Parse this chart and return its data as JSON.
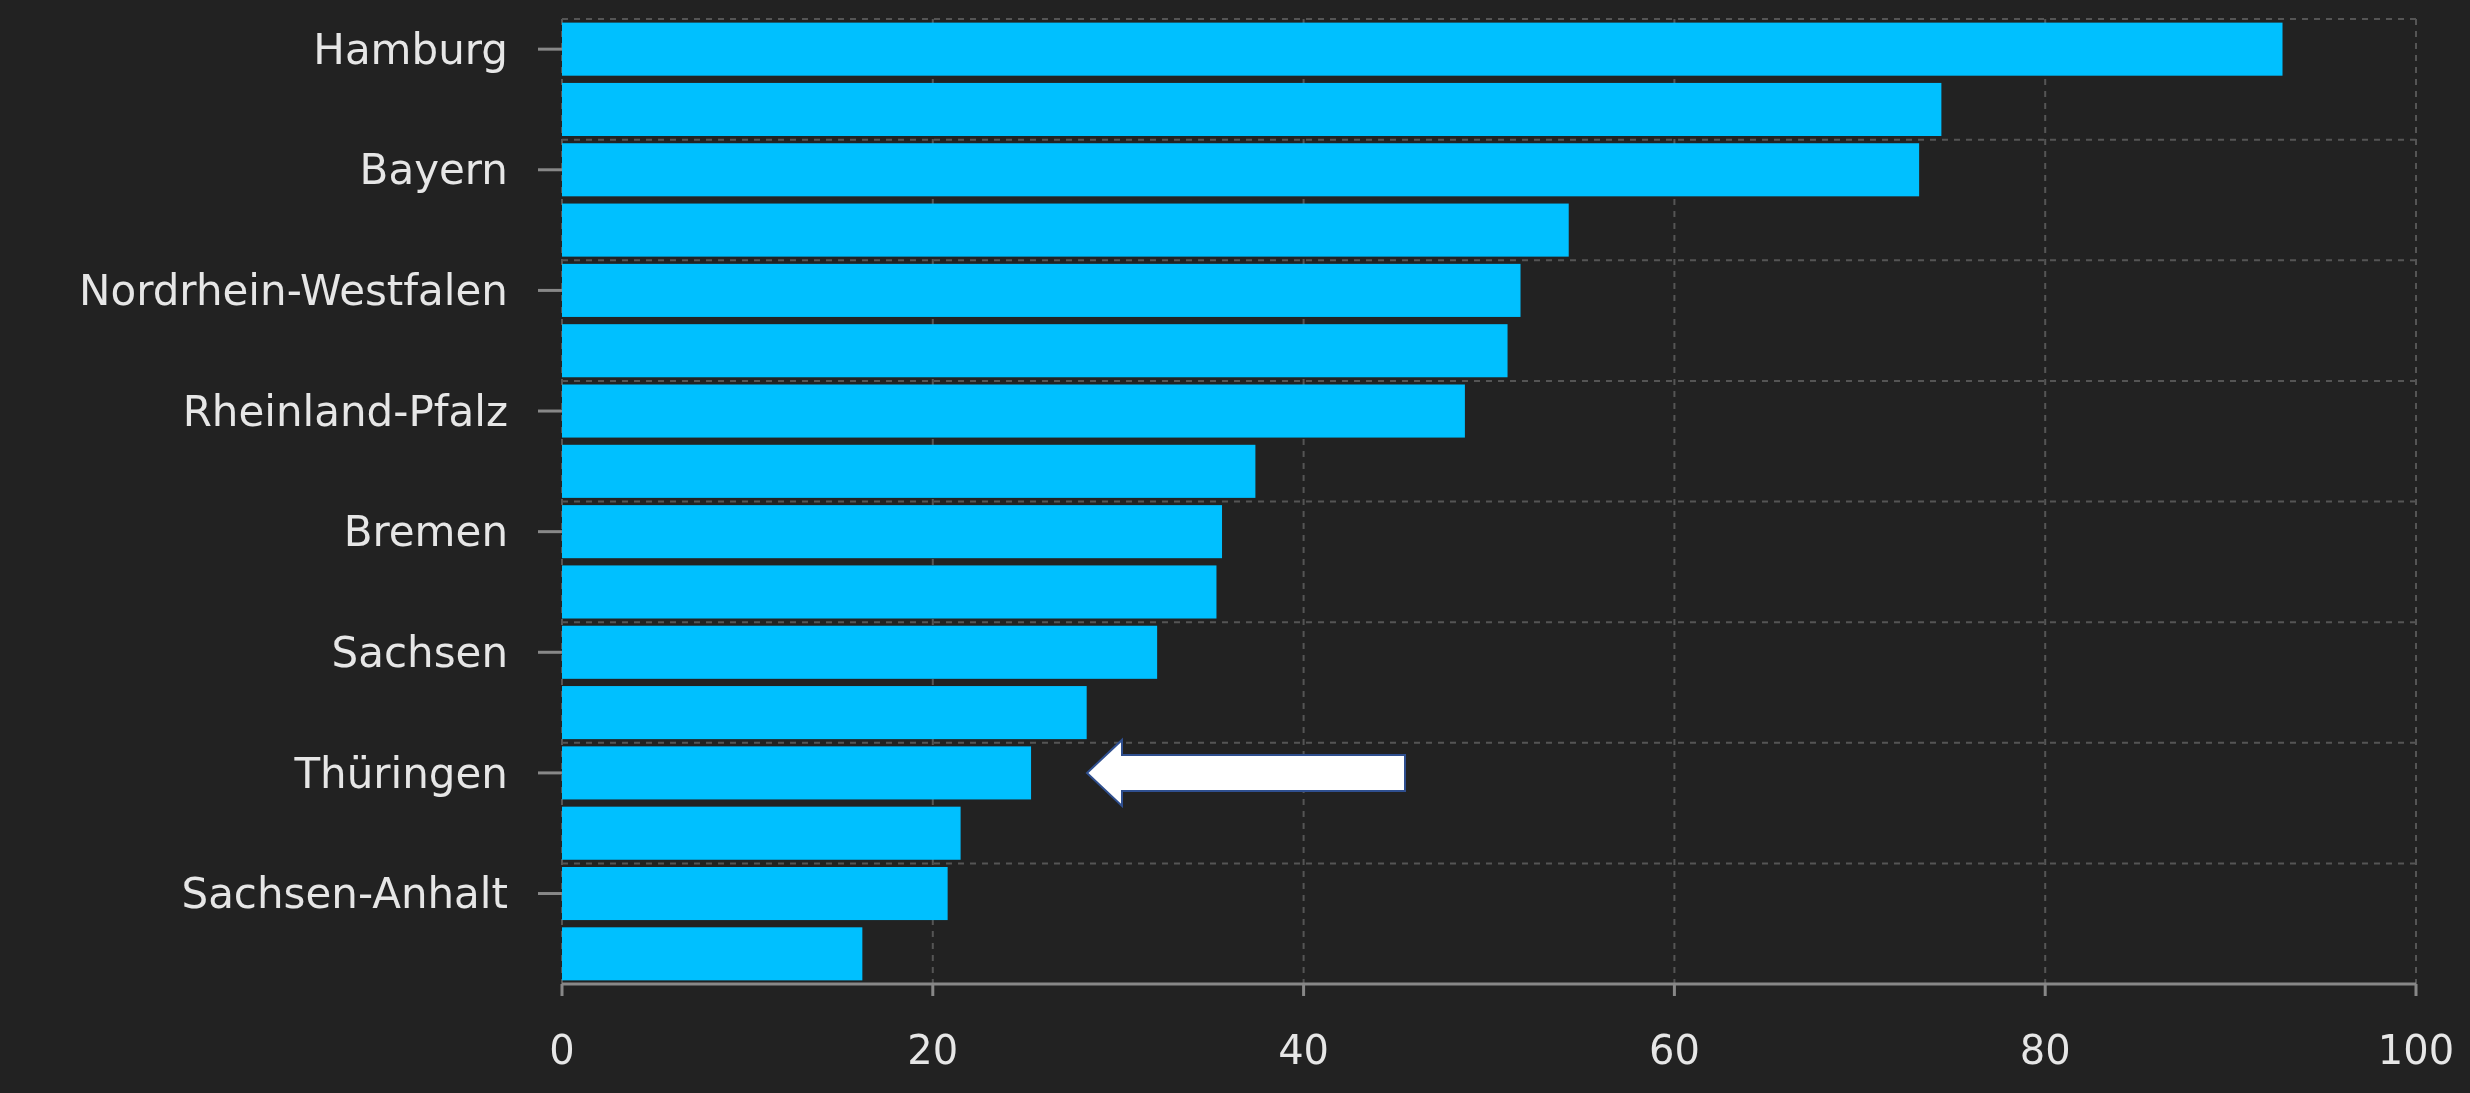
{
  "chart_data": {
    "type": "bar",
    "orientation": "horizontal",
    "categories": [
      "Hamburg",
      null,
      "Bayern",
      null,
      "Nordrhein-Westfalen",
      null,
      "Rheinland-Pfalz",
      null,
      "Bremen",
      null,
      "Sachsen",
      null,
      "Thüringen",
      null,
      "Sachsen-Anhalt",
      null
    ],
    "values": [
      92.8,
      74.4,
      73.2,
      54.3,
      51.7,
      51.0,
      48.7,
      37.4,
      35.6,
      35.3,
      32.1,
      28.3,
      25.3,
      21.5,
      20.8,
      16.2
    ],
    "color": "#00c0ff",
    "xlim": [
      0,
      100
    ],
    "xticks": [
      0,
      20,
      40,
      60,
      80,
      100
    ],
    "grid": true
  }
}
